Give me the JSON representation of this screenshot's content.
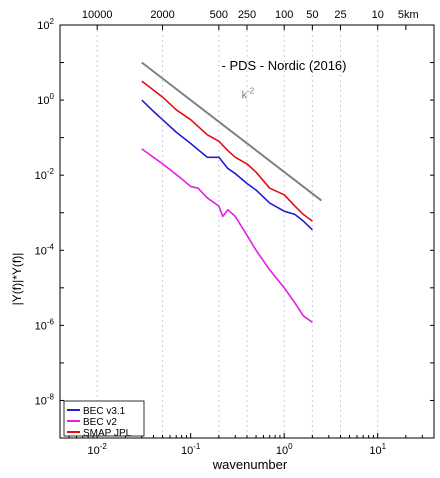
{
  "chart_data": {
    "type": "line",
    "title": "- PDS - Nordic (2016)",
    "xlabel": "wavenumber",
    "ylabel": "|Y(f)|*Y(f)|",
    "x_scale": "log",
    "y_scale": "log",
    "xlim": [
      0.004,
      40
    ],
    "ylim": [
      1e-09,
      100.0
    ],
    "grid": "vertical dashed at top-axis distance ticks",
    "x_ticks": [
      {
        "value": 0.01,
        "base": "10",
        "exp": "-2"
      },
      {
        "value": 0.1,
        "base": "10",
        "exp": "-1"
      },
      {
        "value": 1,
        "base": "10",
        "exp": "0"
      },
      {
        "value": 10,
        "base": "10",
        "exp": "1"
      }
    ],
    "y_ticks": [
      {
        "value": 100,
        "base": "10",
        "exp": "2"
      },
      {
        "value": 1,
        "base": "10",
        "exp": "0"
      },
      {
        "value": 0.01,
        "base": "10",
        "exp": "-2"
      },
      {
        "value": 0.0001,
        "base": "10",
        "exp": "-4"
      },
      {
        "value": 1e-06,
        "base": "10",
        "exp": "-6"
      },
      {
        "value": 1e-08,
        "base": "10",
        "exp": "-8"
      }
    ],
    "top_axis": {
      "unit": "km",
      "ticks": [
        {
          "label": "10000",
          "x": 0.01
        },
        {
          "label": "2000",
          "x": 0.05
        },
        {
          "label": "500",
          "x": 0.2
        },
        {
          "label": "250",
          "x": 0.4
        },
        {
          "label": "100",
          "x": 1
        },
        {
          "label": "50",
          "x": 2
        },
        {
          "label": "25",
          "x": 4
        },
        {
          "label": "10",
          "x": 10
        },
        {
          "label": "5km",
          "x": 20
        }
      ]
    },
    "reference_line": {
      "label_base": "k",
      "label_exp": "-2",
      "color": "#808080",
      "points": [
        [
          0.03,
          10
        ],
        [
          2.5,
          0.0021
        ]
      ]
    },
    "legend_position": "bottom-left",
    "series": [
      {
        "name": "BEC v3.1",
        "color": "#1f1fd0",
        "points": [
          [
            0.03,
            1.0
          ],
          [
            0.04,
            0.5
          ],
          [
            0.05,
            0.3
          ],
          [
            0.07,
            0.14
          ],
          [
            0.1,
            0.07
          ],
          [
            0.15,
            0.03
          ],
          [
            0.2,
            0.03
          ],
          [
            0.25,
            0.015
          ],
          [
            0.3,
            0.011
          ],
          [
            0.4,
            0.006
          ],
          [
            0.5,
            0.004
          ],
          [
            0.7,
            0.0018
          ],
          [
            1.0,
            0.0011
          ],
          [
            1.3,
            0.0009
          ],
          [
            1.6,
            0.0006
          ],
          [
            2.0,
            0.00035
          ]
        ]
      },
      {
        "name": "BEC v2",
        "color": "#e020e0",
        "points": [
          [
            0.03,
            0.05
          ],
          [
            0.05,
            0.02
          ],
          [
            0.08,
            0.008
          ],
          [
            0.1,
            0.005
          ],
          [
            0.12,
            0.0045
          ],
          [
            0.15,
            0.0025
          ],
          [
            0.2,
            0.0015
          ],
          [
            0.22,
            0.0008
          ],
          [
            0.25,
            0.0012
          ],
          [
            0.3,
            0.0008
          ],
          [
            0.4,
            0.00025
          ],
          [
            0.5,
            0.0001
          ],
          [
            0.7,
            3e-05
          ],
          [
            1.0,
            1e-05
          ],
          [
            1.3,
            4e-06
          ],
          [
            1.6,
            1.8e-06
          ],
          [
            2.0,
            1.2e-06
          ]
        ]
      },
      {
        "name": "SMAP JPL",
        "color": "#e01010",
        "points": [
          [
            0.03,
            3.2
          ],
          [
            0.05,
            1.2
          ],
          [
            0.07,
            0.55
          ],
          [
            0.1,
            0.3
          ],
          [
            0.15,
            0.12
          ],
          [
            0.2,
            0.08
          ],
          [
            0.25,
            0.045
          ],
          [
            0.3,
            0.03
          ],
          [
            0.4,
            0.02
          ],
          [
            0.5,
            0.012
          ],
          [
            0.7,
            0.0045
          ],
          [
            1.0,
            0.003
          ],
          [
            1.3,
            0.0015
          ],
          [
            1.6,
            0.0009
          ],
          [
            2.0,
            0.0006
          ]
        ]
      }
    ]
  }
}
